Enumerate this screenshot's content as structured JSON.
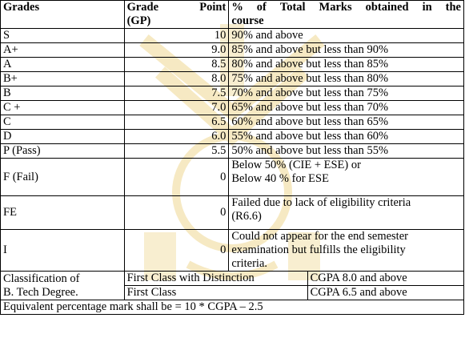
{
  "header": {
    "grades": "Grades",
    "grade_point_line1_a": "Grade",
    "grade_point_line1_b": "Point",
    "grade_point_line2": "(GP)",
    "pct_line1_words": [
      "%",
      "of",
      "Total",
      "Marks",
      "obtained",
      "in",
      "the"
    ],
    "pct_line2": "course"
  },
  "rows": [
    {
      "grade": "S",
      "gp": "10",
      "pct": "90% and above"
    },
    {
      "grade": "A+",
      "gp": "9.0",
      "pct": "85% and above but less than 90%"
    },
    {
      "grade": "A",
      "gp": "8.5",
      "pct": "80% and above but less than 85%"
    },
    {
      "grade": "B+",
      "gp": "8.0",
      "pct": "75% and above but less than 80%"
    },
    {
      "grade": "B",
      "gp": "7.5",
      "pct": "70% and above but less than 75%"
    },
    {
      "grade": "C +",
      "gp": "7.0",
      "pct": "65% and above but less than 70%"
    },
    {
      "grade": "C",
      "gp": "6.5",
      "pct": "60% and above but less than 65%"
    },
    {
      "grade": "D",
      "gp": "6.0",
      "pct": "55% and above but less than 60%"
    },
    {
      "grade": "P (Pass)",
      "gp": "5.5",
      "pct": "50% and above but less than 55%"
    }
  ],
  "fail": {
    "grade": "F (Fail)",
    "gp": "0",
    "pct_line1": "Below 50% (CIE + ESE) or",
    "pct_line2": "Below 40 % for ESE"
  },
  "fe": {
    "grade": "FE",
    "gp": "0",
    "pct_line1": "Failed due to lack of eligibility criteria",
    "pct_line2": "(R6.6)"
  },
  "incomplete": {
    "grade": "I",
    "gp": "0",
    "pct_line1": "Could not appear for the end semester",
    "pct_line2": "examination but fulfills the eligibility",
    "pct_line3": "criteria."
  },
  "classification": {
    "label_line1": "Classification of",
    "label_line2": "B. Tech Degree.",
    "rows": [
      {
        "class": "First Class with Distinction",
        "cgpa": "CGPA 8.0 and above"
      },
      {
        "class": "First Class",
        "cgpa": "CGPA 6.5 and above"
      }
    ]
  },
  "footer": "Equivalent percentage mark shall be = 10 * CGPA – 2.5",
  "watermark_color": "#f3e2b0"
}
